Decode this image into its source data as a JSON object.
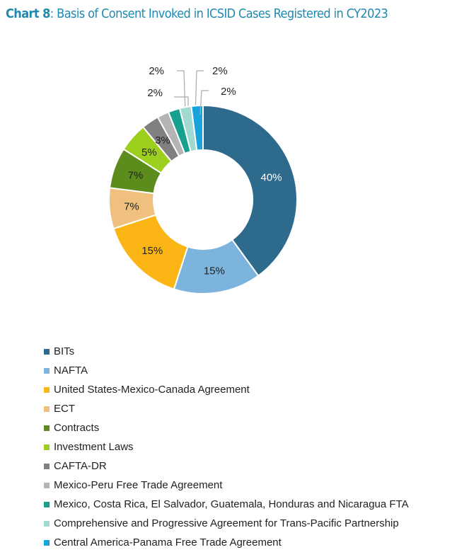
{
  "chart_data": {
    "type": "pie",
    "donut": true,
    "title_prefix": "Chart 8",
    "title": ": Basis of Consent Invoked in ICSID Cases Registered in CY2023",
    "legend_position": "bottom",
    "slices": [
      {
        "name": "BITs",
        "value": 40,
        "label": "40%",
        "color": "#2e6a8c"
      },
      {
        "name": "NAFTA",
        "value": 15,
        "label": "15%",
        "color": "#7db4de"
      },
      {
        "name": "United States-Mexico-Canada Agreement",
        "value": 15,
        "label": "15%",
        "color": "#fbb616"
      },
      {
        "name": "ECT",
        "value": 7,
        "label": "7%",
        "color": "#efc07e"
      },
      {
        "name": "Contracts",
        "value": 7,
        "label": "7%",
        "color": "#5b8c1c"
      },
      {
        "name": "Investment  Laws",
        "value": 5,
        "label": "5%",
        "color": "#9dcf1f"
      },
      {
        "name": "CAFTA-DR",
        "value": 3,
        "label": "3%",
        "color": "#808080"
      },
      {
        "name": "Mexico-Peru Free Trade Agreement",
        "value": 2,
        "label": "2%",
        "color": "#b4b4b4"
      },
      {
        "name": "Mexico, Costa Rica, El Salvador, Guatemala, Honduras and Nicaragua FTA",
        "value": 2,
        "label": "2%",
        "color": "#17a08e"
      },
      {
        "name": "Comprehensive and Progressive Agreement for Trans-Pacific Partnership",
        "value": 2,
        "label": "2%",
        "color": "#9fd9d1"
      },
      {
        "name": "Central America-Panama Free Trade Agreement",
        "value": 2,
        "label": "2%",
        "color": "#17a3dc"
      }
    ]
  }
}
